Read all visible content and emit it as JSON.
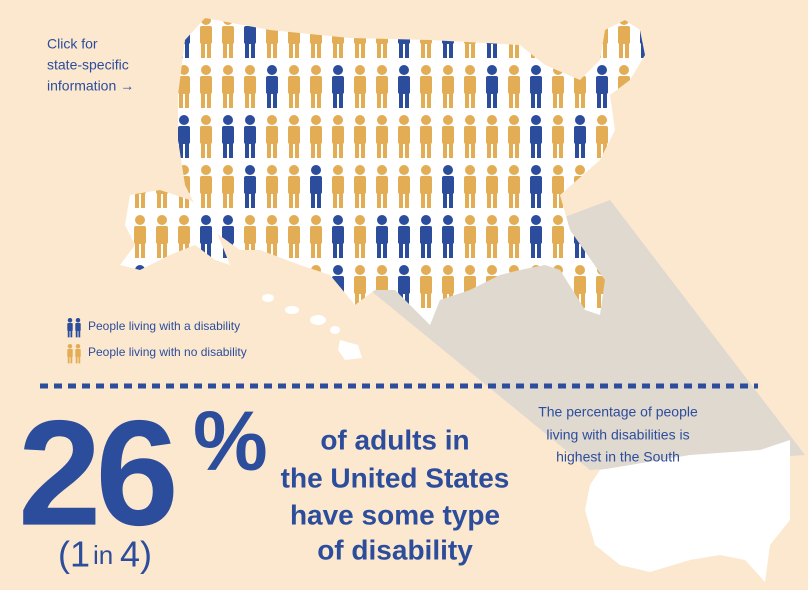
{
  "link": {
    "lines": [
      "Click for",
      "state-specific",
      "information →"
    ]
  },
  "legend": [
    {
      "label": "People living with a disability",
      "color": "#2c4d9c"
    },
    {
      "label": "People living with no disability",
      "color": "#e2ad55"
    }
  ],
  "headline": {
    "number": "26",
    "unit": "%",
    "ratio": [
      "(1",
      "in",
      "4)"
    ],
    "lines": [
      "of adults in",
      "the United States",
      "have some type",
      "of disability"
    ]
  },
  "callout": {
    "lines": [
      "The percentage of people",
      "living with disabilities is",
      "highest in the South"
    ]
  }
}
